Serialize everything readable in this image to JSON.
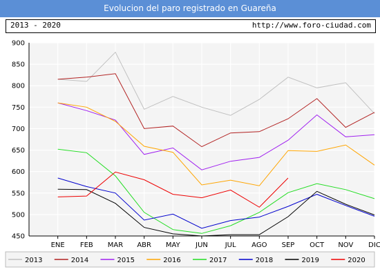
{
  "title": "Evolucion del paro registrado en Guareña",
  "period": "2013 - 2020",
  "source_url": "http://www.foro-ciudad.com",
  "chart_data": {
    "type": "line",
    "categories": [
      "ENE",
      "FEB",
      "MAR",
      "ABR",
      "MAY",
      "JUN",
      "JUL",
      "AGO",
      "SEP",
      "OCT",
      "NOV",
      "DIC"
    ],
    "ylim": [
      450,
      900
    ],
    "yticks": [
      450,
      500,
      550,
      600,
      650,
      700,
      750,
      800,
      850,
      900
    ],
    "grid": true,
    "legend_position": "bottom",
    "series": [
      {
        "name": "2013",
        "color": "#c0c0c0",
        "values": [
          815,
          810,
          878,
          745,
          775,
          750,
          731,
          768,
          820,
          795,
          807,
          735
        ]
      },
      {
        "name": "2014",
        "color": "#b22222",
        "values": [
          815,
          820,
          828,
          700,
          706,
          658,
          690,
          693,
          723,
          770,
          703,
          738
        ]
      },
      {
        "name": "2015",
        "color": "#a020f0",
        "values": [
          760,
          742,
          720,
          640,
          655,
          604,
          624,
          633,
          673,
          732,
          681,
          686
        ]
      },
      {
        "name": "2016",
        "color": "#ffa500",
        "values": [
          760,
          750,
          717,
          659,
          645,
          569,
          580,
          567,
          649,
          647,
          662,
          615
        ]
      },
      {
        "name": "2017",
        "color": "#22dd22",
        "values": [
          652,
          644,
          590,
          505,
          465,
          456,
          474,
          505,
          551,
          572,
          558,
          537
        ]
      },
      {
        "name": "2018",
        "color": "#0000cd",
        "values": [
          585,
          565,
          550,
          487,
          501,
          468,
          486,
          494,
          519,
          547,
          521,
          496
        ]
      },
      {
        "name": "2019",
        "color": "#000000",
        "values": [
          559,
          558,
          526,
          470,
          455,
          450,
          453,
          453,
          495,
          554,
          524,
          499
        ]
      },
      {
        "name": "2020",
        "color": "#ee0000",
        "values": [
          541,
          543,
          599,
          581,
          547,
          539,
          557,
          517,
          585,
          null,
          null,
          null
        ]
      }
    ]
  }
}
